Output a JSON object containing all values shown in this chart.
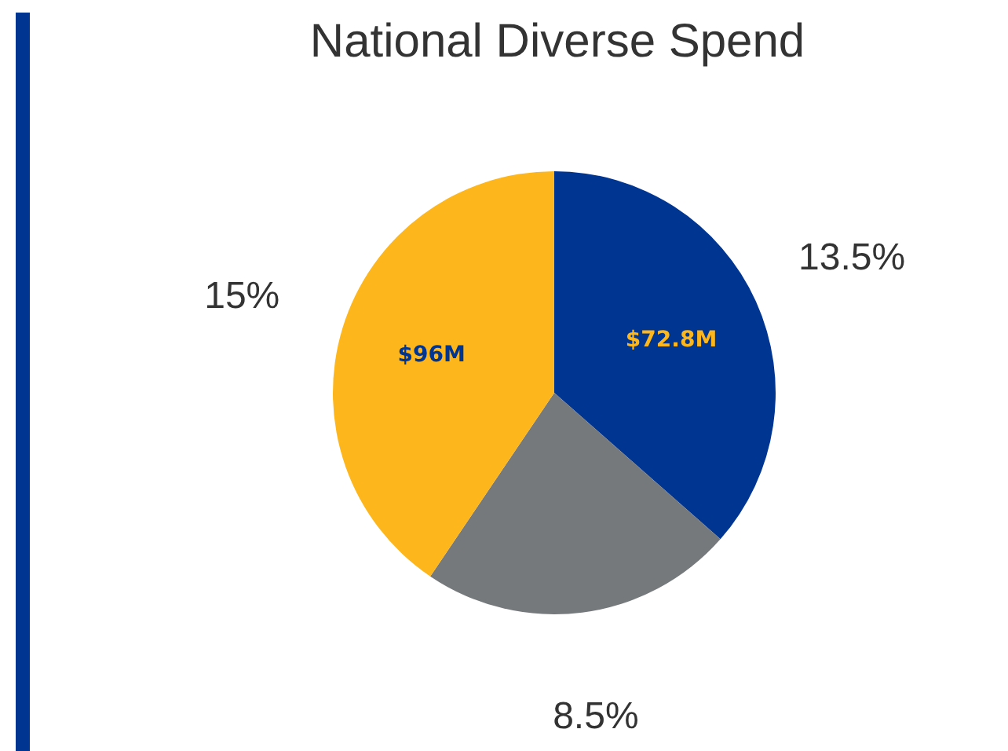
{
  "chart_data": {
    "type": "pie",
    "title": "National Diverse Spend",
    "categories": [
      "$72.8M",
      null,
      "$96M"
    ],
    "values": [
      13.5,
      8.5,
      15
    ],
    "value_labels": [
      "13.5%",
      "8.5%",
      "15%"
    ],
    "colors": [
      "#003591",
      "#76797b",
      "#fdb71c"
    ]
  }
}
